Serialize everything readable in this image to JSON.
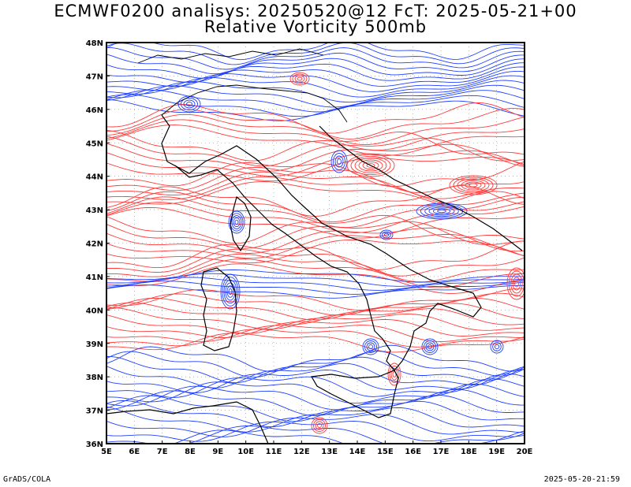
{
  "title": {
    "line1": "ECMWF0200 analisys: 20250520@12 FcT: 2025-05-21+00",
    "line2": "Relative Vorticity 500mb"
  },
  "footer": {
    "left": "GrADS/COLA",
    "right": "2025-05-20-21:59"
  },
  "map": {
    "lon_range": [
      5,
      20
    ],
    "lat_range": [
      36,
      48
    ],
    "lon_ticks": [
      "5E",
      "6E",
      "7E",
      "8E",
      "9E",
      "10E",
      "11E",
      "12E",
      "13E",
      "14E",
      "15E",
      "16E",
      "17E",
      "18E",
      "19E",
      "20E"
    ],
    "lat_ticks": [
      "36N",
      "37N",
      "38N",
      "39N",
      "40N",
      "41N",
      "42N",
      "43N",
      "44N",
      "45N",
      "46N",
      "47N",
      "48N"
    ],
    "positive_color": "#ff3b3b",
    "negative_color": "#2040ff",
    "grid": true
  }
}
